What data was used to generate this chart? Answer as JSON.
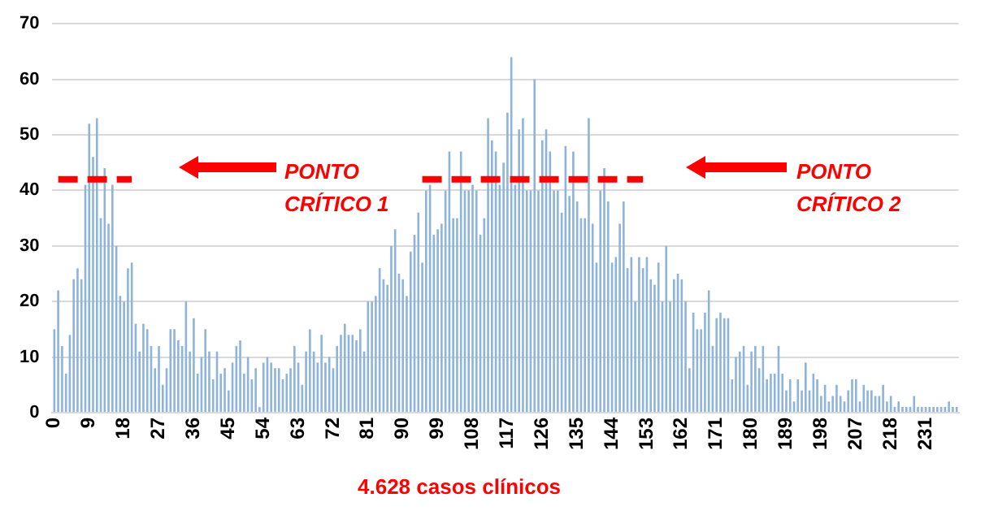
{
  "chart_data": {
    "type": "bar",
    "categories": [
      "0",
      null,
      null,
      null,
      null,
      null,
      null,
      null,
      null,
      "9",
      null,
      null,
      null,
      null,
      null,
      null,
      null,
      null,
      "18",
      null,
      null,
      null,
      null,
      null,
      null,
      null,
      null,
      "27",
      null,
      null,
      null,
      null,
      null,
      null,
      null,
      null,
      "36",
      null,
      null,
      null,
      null,
      null,
      null,
      null,
      null,
      "45",
      null,
      null,
      null,
      null,
      null,
      null,
      null,
      null,
      "54",
      null,
      null,
      null,
      null,
      null,
      null,
      null,
      null,
      "63",
      null,
      null,
      null,
      null,
      null,
      null,
      null,
      null,
      "72",
      null,
      null,
      null,
      null,
      null,
      null,
      null,
      null,
      "81",
      null,
      null,
      null,
      null,
      null,
      null,
      null,
      null,
      "90",
      null,
      null,
      null,
      null,
      null,
      null,
      null,
      null,
      "99",
      null,
      null,
      null,
      null,
      null,
      null,
      null,
      null,
      "108",
      null,
      null,
      null,
      null,
      null,
      null,
      null,
      null,
      "117",
      null,
      null,
      null,
      null,
      null,
      null,
      null,
      null,
      "126",
      null,
      null,
      null,
      null,
      null,
      null,
      null,
      null,
      "135",
      null,
      null,
      null,
      null,
      null,
      null,
      null,
      null,
      "144",
      null,
      null,
      null,
      null,
      null,
      null,
      null,
      null,
      "153",
      null,
      null,
      null,
      null,
      null,
      null,
      null,
      null,
      "162",
      null,
      null,
      null,
      null,
      null,
      null,
      null,
      null,
      "171",
      null,
      null,
      null,
      null,
      null,
      null,
      null,
      null,
      "180",
      null,
      null,
      null,
      null,
      null,
      null,
      null,
      null,
      "189",
      null,
      null,
      null,
      null,
      null,
      null,
      null,
      null,
      "198",
      null,
      null,
      null,
      null,
      null,
      null,
      null,
      null,
      "207",
      null,
      null,
      null,
      null,
      null,
      null,
      null,
      null,
      "218",
      null,
      null,
      null,
      null,
      null,
      null,
      null,
      null,
      "231",
      null,
      null,
      null,
      null,
      null,
      null,
      null,
      null
    ],
    "series": [
      {
        "color": "#8fb4dc",
        "values": [
          15,
          22,
          12,
          7,
          14,
          24,
          26,
          24,
          41,
          52,
          46,
          53,
          35,
          44,
          34,
          41,
          30,
          21,
          20,
          26,
          27,
          16,
          11,
          16,
          15,
          12,
          8,
          12,
          5,
          8,
          15,
          15,
          13,
          12,
          20,
          11,
          17,
          7,
          10,
          15,
          11,
          6,
          11,
          7,
          8,
          4,
          9,
          12,
          13,
          7,
          10,
          6,
          8,
          1,
          9,
          10,
          9,
          8,
          8,
          6,
          7,
          8,
          12,
          9,
          5,
          11,
          15,
          11,
          9,
          14,
          9,
          10,
          8,
          12,
          14,
          16,
          14,
          14,
          13,
          15,
          11,
          20,
          20,
          21,
          26,
          24,
          23,
          30,
          33,
          25,
          24,
          21,
          29,
          32,
          36,
          27,
          40,
          41,
          32,
          33,
          34,
          40,
          47,
          35,
          35,
          47,
          40,
          40,
          41,
          40,
          32,
          35,
          53,
          49,
          47,
          41,
          45,
          54,
          64,
          41,
          51,
          53,
          40,
          40,
          60,
          40,
          49,
          51,
          47,
          40,
          40,
          36,
          48,
          39,
          47,
          38,
          35,
          35,
          53,
          34,
          27,
          40,
          44,
          38,
          27,
          28,
          34,
          38,
          26,
          28,
          20,
          28,
          26,
          28,
          24,
          23,
          27,
          20,
          30,
          20,
          24,
          25,
          24,
          20,
          8,
          18,
          15,
          15,
          18,
          22,
          12,
          17,
          18,
          17,
          17,
          6,
          10,
          11,
          12,
          5,
          11,
          12,
          8,
          12,
          6,
          7,
          7,
          12,
          7,
          4,
          6,
          2,
          6,
          4,
          9,
          4,
          7,
          6,
          3,
          5,
          2,
          3,
          5,
          3,
          2,
          4,
          6,
          6,
          2,
          5,
          4,
          4,
          3,
          3,
          5,
          2,
          3,
          1,
          2,
          1,
          1,
          1,
          3,
          1,
          1,
          1,
          1,
          1,
          1,
          1,
          1,
          2,
          1,
          1
        ]
      },
      {
        "type": "line",
        "color": "#ff0000",
        "values": [
          null,
          42,
          42,
          42,
          42,
          42,
          42,
          42,
          42,
          42,
          42,
          42,
          42,
          42,
          42,
          42,
          42,
          42,
          42,
          42,
          42,
          null,
          null,
          null,
          null,
          null,
          null,
          null,
          null,
          null,
          null,
          null,
          null,
          null,
          null,
          null,
          null,
          null,
          null,
          null,
          null,
          null,
          null,
          null,
          null,
          null,
          null,
          null,
          null,
          null,
          null,
          null,
          null,
          null,
          null,
          null,
          null,
          null,
          null,
          null,
          null,
          null,
          null,
          null,
          null,
          null,
          null,
          null,
          null,
          null,
          null,
          null,
          null,
          null,
          null,
          null,
          null,
          null,
          null,
          null,
          null,
          null,
          null,
          null,
          null,
          null,
          null,
          null,
          null,
          null,
          null,
          null,
          null,
          null,
          null,
          42,
          42,
          42,
          42,
          42,
          42,
          42,
          42,
          42,
          42,
          42,
          42,
          42,
          42,
          42,
          42,
          42,
          42,
          42,
          42,
          42,
          42,
          42,
          42,
          42,
          42,
          42,
          42,
          42,
          42,
          42,
          42,
          42,
          42,
          42,
          42,
          42,
          42,
          42,
          42,
          42,
          42,
          42,
          42,
          42,
          42,
          42,
          42,
          42,
          42,
          42,
          42,
          42,
          42,
          42,
          42,
          42,
          42,
          null,
          null,
          null,
          null,
          null,
          null,
          null,
          null,
          null,
          null,
          null,
          null,
          null,
          null,
          null,
          null,
          null,
          null,
          null,
          null,
          null,
          null,
          null,
          null,
          null,
          null,
          null,
          null,
          null,
          null,
          null,
          null,
          null,
          null,
          null,
          null,
          null,
          null,
          null,
          null,
          null,
          null,
          null,
          null,
          null,
          null,
          null,
          null,
          null,
          null,
          null,
          null,
          null,
          null,
          null,
          null,
          null,
          null,
          null,
          null,
          null,
          null,
          null,
          null,
          null,
          null,
          null,
          null,
          null,
          null,
          null,
          null,
          null,
          null,
          null,
          null,
          null,
          null,
          null,
          null,
          null
        ]
      }
    ],
    "ylim": [
      0,
      70
    ],
    "yticks": [
      0,
      10,
      20,
      30,
      40,
      50,
      60,
      70
    ],
    "grid": "y",
    "legend": false,
    "line_style": "dashed",
    "marker": "none",
    "annotations": [
      "PONTO CRÍTICO 1",
      "PONTO CRÍTICO 2",
      "4.628 casos clínicos"
    ]
  }
}
